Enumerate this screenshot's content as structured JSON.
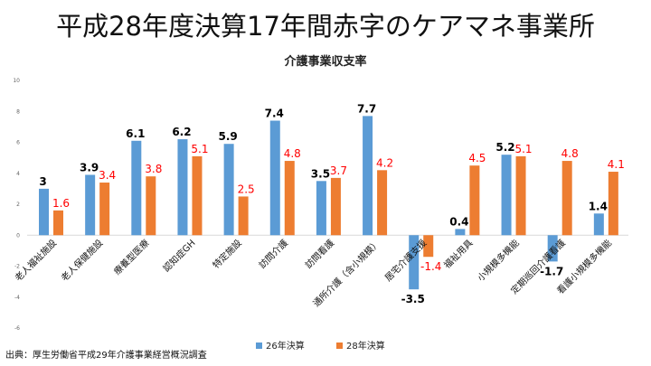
{
  "header": {
    "title": "平成28年度決算17年間赤字のケアマネ事業所"
  },
  "footer": {
    "source": "出典：厚生労働省平成29年介護事業経営概況調査"
  },
  "chart_data": {
    "type": "bar",
    "title": "介護事業収支率",
    "xlabel": "",
    "ylabel": "",
    "ylim": [
      -6,
      10
    ],
    "yticks": [
      -6,
      -4,
      -2,
      0,
      2,
      4,
      6,
      8,
      10
    ],
    "grid": false,
    "legend_position": "bottom",
    "categories": [
      "老人福祉施設",
      "老人保健施設",
      "療養型医療",
      "認知症GH",
      "特定施設",
      "訪問介護",
      "訪問看護",
      "通所介護（含小規模）",
      "居宅介護支援",
      "福祉用具",
      "小規模多機能",
      "定期巡回介護看護",
      "看護小規模多機能"
    ],
    "series": [
      {
        "name": "26年決算",
        "color": "#5b9bd5",
        "label_color": "#000000",
        "values": [
          3,
          3.9,
          6.1,
          6.2,
          5.9,
          7.4,
          3.5,
          7.7,
          -3.5,
          0.4,
          5.2,
          -1.7,
          1.4
        ]
      },
      {
        "name": "28年決算",
        "color": "#ed7d31",
        "label_color": "#ff0000",
        "values": [
          1.6,
          3.4,
          3.8,
          5.1,
          2.5,
          4.8,
          3.7,
          4.2,
          -1.4,
          4.5,
          5.1,
          4.8,
          4.1
        ]
      }
    ]
  }
}
